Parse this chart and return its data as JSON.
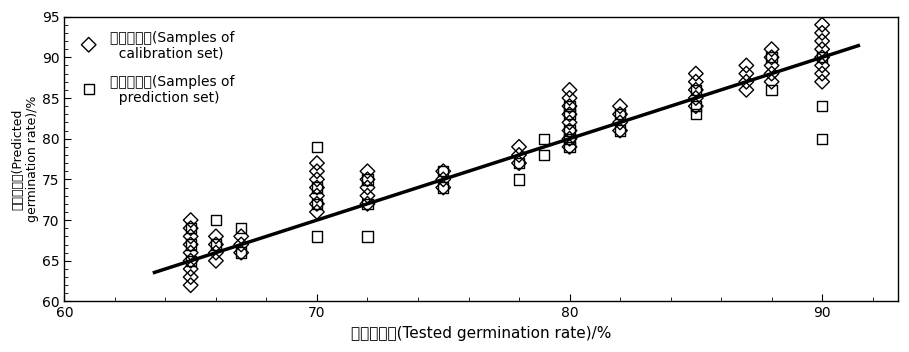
{
  "xlim": [
    60,
    93
  ],
  "ylim": [
    60,
    95
  ],
  "xticks": [
    60,
    70,
    80,
    90
  ],
  "yticks": [
    60,
    65,
    70,
    75,
    80,
    85,
    90,
    95
  ],
  "xlabel": "测试发芽率(Tested germination rate)/%",
  "ylabel_cn": "预测发芽率",
  "ylabel_en": "(Predicted\ngermination rate)/%",
  "line_x": [
    63.5,
    91.5
  ],
  "line_y": [
    63.5,
    91.5
  ],
  "calib_x": [
    65,
    65,
    65,
    65,
    65,
    65,
    65,
    65,
    65,
    66,
    66,
    66,
    66,
    67,
    67,
    67,
    70,
    70,
    70,
    70,
    70,
    70,
    70,
    72,
    72,
    72,
    72,
    72,
    75,
    75,
    75,
    78,
    78,
    78,
    80,
    80,
    80,
    80,
    80,
    80,
    80,
    80,
    82,
    82,
    82,
    82,
    85,
    85,
    85,
    85,
    85,
    87,
    87,
    87,
    87,
    88,
    88,
    88,
    88,
    88,
    90,
    90,
    90,
    90,
    90,
    90,
    90,
    90
  ],
  "calib_y": [
    62,
    63,
    64,
    65,
    66,
    67,
    68,
    69,
    70,
    65,
    66,
    67,
    68,
    66,
    67,
    68,
    71,
    72,
    73,
    74,
    75,
    76,
    77,
    72,
    73,
    74,
    75,
    76,
    74,
    75,
    76,
    77,
    78,
    79,
    79,
    80,
    81,
    82,
    83,
    84,
    85,
    86,
    81,
    82,
    83,
    84,
    84,
    85,
    86,
    87,
    88,
    86,
    87,
    88,
    89,
    87,
    88,
    89,
    90,
    91,
    87,
    88,
    89,
    90,
    91,
    92,
    93,
    94
  ],
  "pred_x": [
    65,
    65,
    65,
    66,
    66,
    67,
    67,
    70,
    70,
    70,
    70,
    72,
    72,
    72,
    75,
    75,
    78,
    78,
    79,
    79,
    80,
    80,
    80,
    80,
    80,
    82,
    82,
    85,
    85,
    85,
    88,
    88,
    90,
    90,
    90
  ],
  "pred_y": [
    65,
    67,
    69,
    67,
    70,
    66,
    69,
    68,
    72,
    74,
    79,
    68,
    72,
    75,
    74,
    76,
    75,
    77,
    78,
    80,
    79,
    80,
    81,
    83,
    84,
    81,
    83,
    83,
    84,
    86,
    86,
    90,
    80,
    84,
    90
  ],
  "marker_size_calib": 55,
  "marker_size_pred": 55,
  "line_color": "#000000",
  "marker_color": "#000000",
  "background_color": "#ffffff",
  "legend_label_calib": "校正样品集(Samples of\n  calibration set)",
  "legend_label_pred": "预测样品集(Samples of\n  prediction set)"
}
